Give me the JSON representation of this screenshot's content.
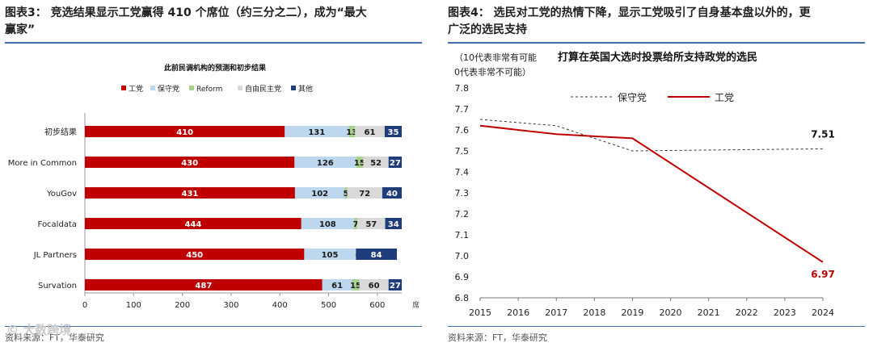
{
  "left": {
    "heading_line1": "图表3：  竞选结果显示工党赢得 410 个席位（约三分之二），成为“最大",
    "heading_line2": "赢家”",
    "source": "资料来源：FT，华泰研究",
    "watermark": "© 大数跨境"
  },
  "right": {
    "heading_line1": "图表4：  选民对工党的热情下降，显示工党吸引了自身基本盘以外的，更",
    "heading_line2": "广泛的选民支持",
    "source": "资料来源：FT，华泰研究"
  },
  "colors": {
    "labour": "#c00000",
    "conservative": "#bdd7ee",
    "reform": "#a9d18e",
    "libdem": "#d9d9d9",
    "other": "#1f3d7a",
    "rule": "#3d6fa8"
  },
  "chart_data": [
    {
      "type": "bar",
      "orientation": "horizontal",
      "stacked": true,
      "title": "此前民调机构的预测和初步结果",
      "xlabel": "席",
      "xlim": [
        0,
        650
      ],
      "xticks": [
        0,
        100,
        200,
        300,
        400,
        500,
        600
      ],
      "legend_position": "top",
      "categories": [
        "初步结果",
        "More in Common",
        "YouGov",
        "Focaldata",
        "JL Partners",
        "Survation"
      ],
      "series": [
        {
          "name": "工党",
          "color_key": "labour",
          "values": [
            410,
            430,
            431,
            444,
            450,
            487
          ],
          "labels": [
            "410",
            "430",
            "431",
            "444",
            "450",
            "487"
          ]
        },
        {
          "name": "保守党",
          "color_key": "conservative",
          "values": [
            131,
            126,
            102,
            108,
            105,
            61
          ],
          "labels": [
            "131",
            "126",
            "102",
            "108",
            "105",
            "61"
          ]
        },
        {
          "name": "Reform",
          "color_key": "reform",
          "values": [
            13,
            15,
            5,
            7,
            0,
            15
          ],
          "labels": [
            "13",
            "15",
            "5",
            "7",
            "0",
            "15"
          ]
        },
        {
          "name": "自由民主党",
          "color_key": "libdem",
          "values": [
            61,
            52,
            72,
            57,
            1,
            60
          ],
          "labels": [
            "61",
            "52",
            "72",
            "57",
            "1",
            "60"
          ]
        },
        {
          "name": "其他",
          "color_key": "other",
          "values": [
            35,
            27,
            40,
            34,
            84,
            27
          ],
          "labels": [
            "35",
            "27",
            "40",
            "34",
            "84",
            "27"
          ]
        }
      ]
    },
    {
      "type": "line",
      "title_line1_part1": "（10代表非常有可能",
      "title_line1_part2": "打算在英国大选时投票给所支持政党的选民",
      "title_line2": "0代表非常不可能）",
      "x": [
        2015,
        2016,
        2017,
        2018,
        2019,
        2020,
        2021,
        2022,
        2023,
        2024
      ],
      "xticks": [
        "2015",
        "2016",
        "2017",
        "2018",
        "2019",
        "2020",
        "2021",
        "2022",
        "2023",
        "2024"
      ],
      "ylim": [
        6.8,
        7.8
      ],
      "yticks": [
        "6.8",
        "6.9",
        "7.0",
        "7.1",
        "7.2",
        "7.3",
        "7.4",
        "7.5",
        "7.6",
        "7.7",
        "7.8"
      ],
      "legend_position": "top",
      "series": [
        {
          "name": "保守党",
          "style": "dashed",
          "x": [
            2015,
            2017,
            2019,
            2024
          ],
          "values": [
            7.65,
            7.62,
            7.5,
            7.51
          ],
          "end_label": "7.51"
        },
        {
          "name": "工党",
          "style": "solid",
          "color_key": "labour",
          "x": [
            2015,
            2017,
            2019,
            2024
          ],
          "values": [
            7.62,
            7.58,
            7.56,
            6.97
          ],
          "end_label": "6.97"
        }
      ]
    }
  ]
}
